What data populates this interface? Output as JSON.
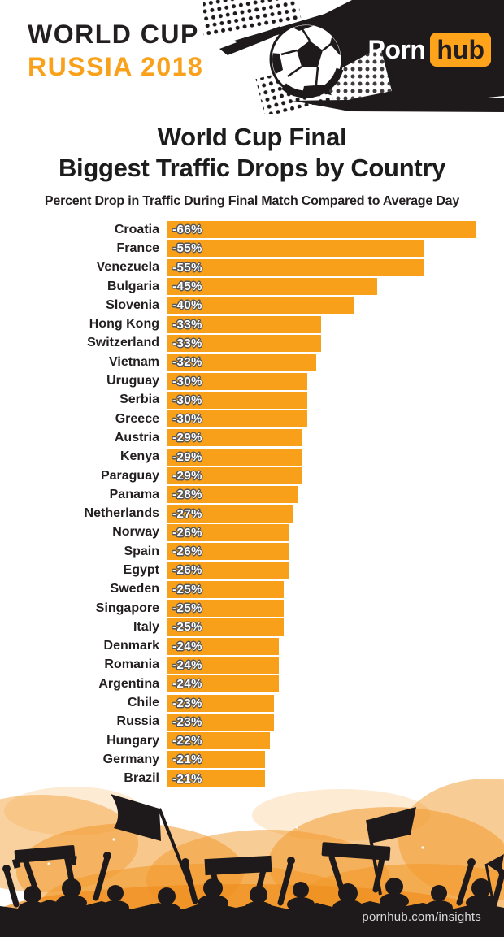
{
  "header": {
    "brand_line1": "WORLD CUP",
    "brand_line2": "RUSSIA 2018",
    "logo_part1": "Porn",
    "logo_part2": "hub"
  },
  "title": {
    "line1": "World Cup Final",
    "line2": "Biggest Traffic Drops by Country"
  },
  "subtitle": "Percent Drop in Traffic During Final Match Compared to Average Day",
  "footer": {
    "link": "pornhub.com/insights"
  },
  "colors": {
    "bar_orange": "#f9a01b",
    "brand_orange": "#f9a11b",
    "logo_orange": "#ffa31a",
    "dark": "#231f20",
    "value_outline": "#55565a"
  },
  "chart_data": {
    "type": "bar",
    "orientation": "horizontal",
    "title": "World Cup Final — Biggest Traffic Drops by Country",
    "subtitle": "Percent Drop in Traffic During Final Match Compared to Average Day",
    "xlabel": "",
    "ylabel": "",
    "xlim": [
      0,
      -70
    ],
    "grid": false,
    "legend": "none",
    "bar_color": "#f9a01b",
    "categories": [
      "Croatia",
      "France",
      "Venezuela",
      "Bulgaria",
      "Slovenia",
      "Hong Kong",
      "Switzerland",
      "Vietnam",
      "Uruguay",
      "Serbia",
      "Greece",
      "Austria",
      "Kenya",
      "Paraguay",
      "Panama",
      "Netherlands",
      "Norway",
      "Spain",
      "Egypt",
      "Sweden",
      "Singapore",
      "Italy",
      "Denmark",
      "Romania",
      "Argentina",
      "Chile",
      "Russia",
      "Hungary",
      "Germany",
      "Brazil"
    ],
    "values": [
      -66,
      -55,
      -55,
      -45,
      -40,
      -33,
      -33,
      -32,
      -30,
      -30,
      -30,
      -29,
      -29,
      -29,
      -28,
      -27,
      -26,
      -26,
      -26,
      -25,
      -25,
      -25,
      -24,
      -24,
      -24,
      -23,
      -23,
      -22,
      -21,
      -21
    ],
    "value_labels": [
      "-66%",
      "-55%",
      "-55%",
      "-45%",
      "-40%",
      "-33%",
      "-33%",
      "-32%",
      "-30%",
      "-30%",
      "-30%",
      "-29%",
      "-29%",
      "-29%",
      "-28%",
      "-27%",
      "-26%",
      "-26%",
      "-26%",
      "-25%",
      "-25%",
      "-25%",
      "-24%",
      "-24%",
      "-24%",
      "-23%",
      "-23%",
      "-22%",
      "-21%",
      "-21%"
    ]
  }
}
